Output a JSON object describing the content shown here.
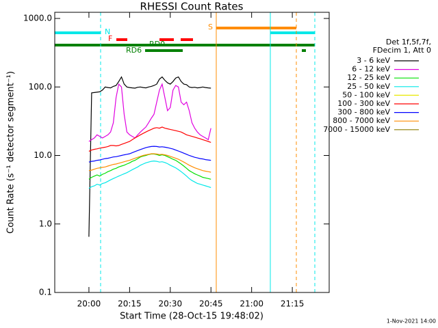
{
  "chart_data": {
    "type": "line",
    "title": "RHESSI Count Rates",
    "xlabel": "Start Time (28-Oct-15 19:48:02)",
    "ylabel": "Count Rate (s⁻¹ detector segment⁻¹)",
    "footer": "1-Nov-2021 14:00",
    "legend_header": [
      "Det 1f,5f,7f,",
      "FDecim 1, Att 0"
    ],
    "flags": [
      "N",
      "F",
      "RD0",
      "RD6",
      "S"
    ],
    "log_y": true,
    "xlim": [
      1187.4,
      1288.6
    ],
    "xticks": [
      {
        "value": 1200,
        "label": "20:00"
      },
      {
        "value": 1215,
        "label": "20:15"
      },
      {
        "value": 1230,
        "label": "20:30"
      },
      {
        "value": 1245,
        "label": "20:45"
      },
      {
        "value": 1260,
        "label": "21:00"
      },
      {
        "value": 1275,
        "label": "21:15"
      }
    ],
    "ylim": [
      0.1,
      1230
    ],
    "yticks": [
      0.1,
      {
        "value": 1,
        "label": "1.0"
      },
      {
        "value": 10,
        "label": "10.0"
      },
      {
        "value": 100,
        "label": "100.0"
      },
      {
        "value": 1000,
        "label": "1000.0"
      }
    ],
    "x": [
      1200,
      1201,
      1202,
      1203,
      1204,
      1205,
      1206,
      1207,
      1208,
      1209,
      1210,
      1211,
      1212,
      1213,
      1214,
      1215,
      1216,
      1217,
      1218,
      1219,
      1220,
      1221,
      1222,
      1223,
      1224,
      1225,
      1226,
      1227,
      1228,
      1229,
      1230,
      1231,
      1232,
      1233,
      1234,
      1235,
      1236,
      1237,
      1238,
      1239,
      1240,
      1241,
      1242,
      1243,
      1244,
      1245
    ],
    "series": [
      {
        "name": "3 - 6 keV",
        "color": "#000000",
        "values": [
          0.65,
          82,
          83,
          84,
          85,
          90,
          100,
          98,
          97,
          102,
          105,
          120,
          140,
          110,
          100,
          98,
          97,
          96,
          99,
          100,
          98,
          97,
          100,
          102,
          105,
          110,
          130,
          140,
          125,
          115,
          110,
          120,
          135,
          140,
          120,
          110,
          108,
          100,
          98,
          99,
          97,
          98,
          100,
          98,
          97,
          96
        ]
      },
      {
        "name": "6 - 12 keV",
        "color": "#e000e0",
        "values": [
          16,
          17,
          18,
          20,
          19,
          18,
          19,
          20,
          22,
          30,
          70,
          110,
          100,
          40,
          22,
          20,
          19,
          18,
          20,
          22,
          24,
          26,
          30,
          35,
          40,
          60,
          90,
          110,
          70,
          45,
          50,
          90,
          105,
          100,
          60,
          55,
          60,
          45,
          30,
          25,
          22,
          20,
          19,
          18,
          17,
          25
        ]
      },
      {
        "name": "12 - 25 keV",
        "color": "#00e000",
        "values": [
          4.5,
          4.8,
          5,
          5.2,
          5,
          5.3,
          5.5,
          5.8,
          6,
          6.3,
          6.5,
          6.8,
          7,
          7.2,
          7.5,
          7.8,
          8.2,
          8.5,
          9,
          9.5,
          9.8,
          10,
          10.3,
          10.5,
          10.5,
          10.3,
          10,
          10.2,
          10,
          9.6,
          9.2,
          8.8,
          8.5,
          8,
          7.5,
          7,
          6.5,
          6,
          5.7,
          5.4,
          5.2,
          5,
          4.8,
          4.7,
          4.6,
          4.5
        ]
      },
      {
        "name": "25 - 50 keV",
        "color": "#00e8e8",
        "values": [
          3.3,
          3.5,
          3.6,
          3.8,
          3.7,
          3.9,
          4,
          4.2,
          4.4,
          4.6,
          4.8,
          5,
          5.2,
          5.4,
          5.6,
          5.9,
          6.2,
          6.5,
          6.8,
          7.2,
          7.5,
          7.8,
          8,
          8.2,
          8.3,
          8.2,
          8,
          8.1,
          7.9,
          7.6,
          7.2,
          6.9,
          6.6,
          6.2,
          5.8,
          5.4,
          5,
          4.6,
          4.3,
          4.1,
          3.9,
          3.8,
          3.7,
          3.6,
          3.5,
          3.4
        ]
      },
      {
        "name": "50 - 100 keV",
        "color": "#e8e800",
        "values": [
          null,
          null,
          null,
          null,
          null,
          null,
          null,
          null,
          null,
          null,
          null,
          null,
          null,
          null,
          null,
          null,
          null,
          null,
          null,
          null,
          null,
          null,
          null,
          null,
          null,
          null,
          null,
          null,
          null,
          null,
          null,
          null,
          null,
          null,
          null,
          null,
          null,
          null,
          null,
          null,
          null,
          null,
          null,
          null,
          null,
          null
        ]
      },
      {
        "name": "100 - 300 keV",
        "color": "#ff0000",
        "values": [
          11.5,
          12,
          12.3,
          12.5,
          12.8,
          13,
          13.2,
          13.5,
          14,
          14,
          13.8,
          14,
          14.5,
          15,
          15.5,
          16,
          17,
          18,
          19,
          20,
          21,
          22,
          23,
          24,
          25,
          25.5,
          25,
          26,
          25,
          24.5,
          24,
          23.5,
          23,
          22.5,
          22,
          21,
          20,
          19.5,
          19,
          18.5,
          18,
          17.5,
          17,
          16.5,
          16,
          15.5
        ]
      },
      {
        "name": "300 - 800 keV",
        "color": "#0000ff",
        "values": [
          8,
          8.2,
          8.3,
          8.5,
          8.6,
          8.8,
          9,
          9.1,
          9.3,
          9.5,
          9.6,
          9.8,
          10,
          10.2,
          10.4,
          10.6,
          11,
          11.4,
          11.8,
          12.2,
          12.6,
          13,
          13.3,
          13.5,
          13.6,
          13.5,
          13.3,
          13.4,
          13.2,
          13,
          12.7,
          12.4,
          12,
          11.6,
          11.2,
          10.8,
          10.4,
          10,
          9.7,
          9.4,
          9.2,
          9,
          8.9,
          8.7,
          8.6,
          8.5
        ]
      },
      {
        "name": "800 - 7000 keV",
        "color": "#ff8c00",
        "values": [
          6,
          6.1,
          6.3,
          6.5,
          6.6,
          6.7,
          6.8,
          7,
          7.2,
          7.4,
          7.5,
          7.7,
          7.9,
          8.1,
          8.3,
          8.5,
          8.8,
          9.1,
          9.4,
          9.7,
          10,
          10.2,
          10.4,
          10.6,
          10.6,
          10.5,
          10.3,
          10.4,
          10.2,
          10,
          9.7,
          9.4,
          9.1,
          8.8,
          8.4,
          8,
          7.6,
          7.2,
          6.9,
          6.6,
          6.4,
          6.2,
          6,
          5.9,
          5.8,
          5.7
        ]
      },
      {
        "name": "7000 - 15000 keV",
        "color": "#8b7d00",
        "values": [
          null,
          null,
          null,
          null,
          null,
          null,
          null,
          null,
          null,
          null,
          null,
          null,
          null,
          null,
          null,
          null,
          null,
          null,
          null,
          null,
          null,
          null,
          null,
          null,
          null,
          null,
          null,
          null,
          null,
          null,
          null,
          null,
          null,
          null,
          null,
          null,
          null,
          null,
          null,
          null,
          null,
          null,
          null,
          null,
          null,
          null
        ]
      }
    ]
  }
}
